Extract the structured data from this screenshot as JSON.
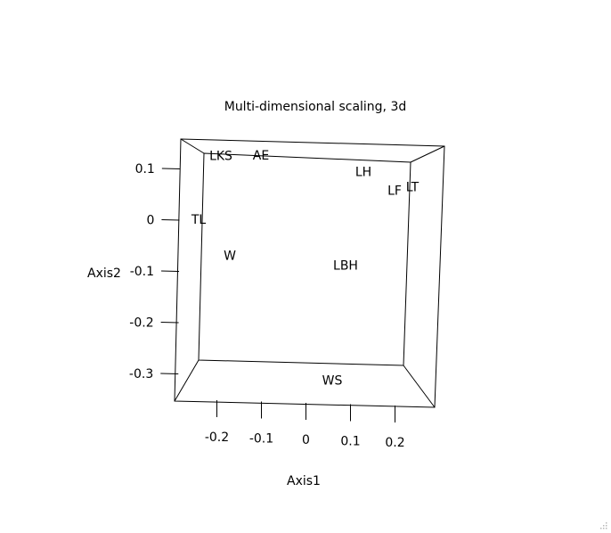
{
  "chart_data": {
    "type": "scatter",
    "title": "Multi-dimensional scaling, 3d",
    "xlabel": "Axis1",
    "ylabel": "Axis2",
    "xticks": [
      "-0.2",
      "-0.1",
      "0",
      "0.1",
      "0.2"
    ],
    "yticks": [
      "0.1",
      "0",
      "-0.1",
      "-0.2",
      "-0.3"
    ],
    "xlim": [
      -0.29,
      0.3
    ],
    "ylim": [
      -0.37,
      0.14
    ],
    "points": [
      {
        "label": "LKS",
        "x": -0.19,
        "y": 0.115
      },
      {
        "label": "AE",
        "x": -0.1,
        "y": 0.117
      },
      {
        "label": "LH",
        "x": 0.13,
        "y": 0.088
      },
      {
        "label": "LF",
        "x": 0.2,
        "y": 0.052
      },
      {
        "label": "LT",
        "x": 0.24,
        "y": 0.06
      },
      {
        "label": "TL",
        "x": -0.24,
        "y": -0.01
      },
      {
        "label": "W",
        "x": -0.17,
        "y": -0.08
      },
      {
        "label": "LBH",
        "x": 0.09,
        "y": -0.095
      },
      {
        "label": "WS",
        "x": 0.06,
        "y": -0.32
      }
    ],
    "legend": "none",
    "grid": false
  }
}
